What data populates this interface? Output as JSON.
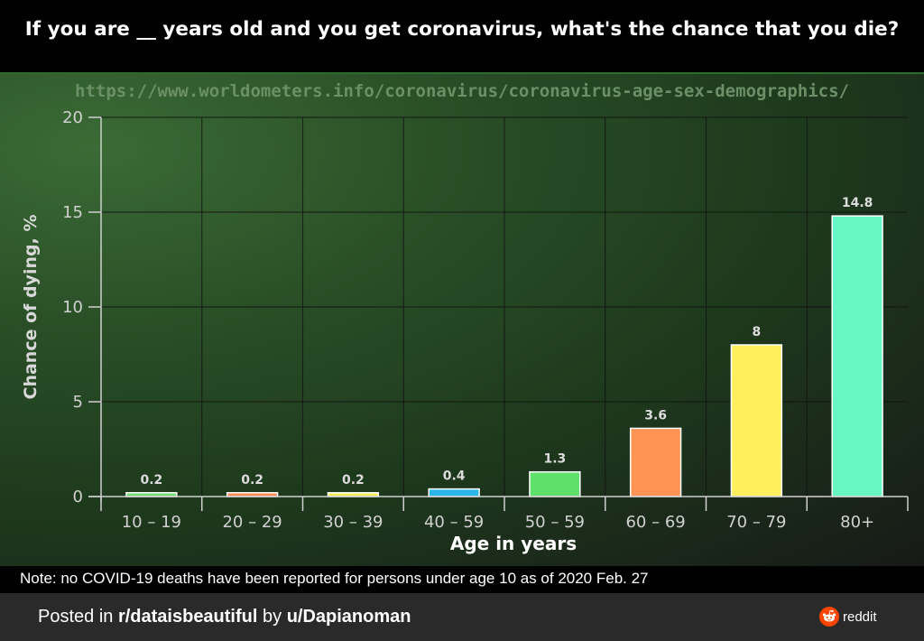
{
  "title": "If you are __ years old and you get coronavirus, what's the chance that you die?",
  "source_url": "https://www.worldometers.info/coronavirus/coronavirus-age-sex-demographics/",
  "note": "Note: no COVID-19 deaths have been reported for persons under age 10 as of 2020 Feb. 27",
  "footer": {
    "posted_prefix": "Posted in ",
    "subreddit": "r/dataisbeautiful",
    "by_text": " by ",
    "user": "u/Dapianoman",
    "brand": "reddit",
    "brand_icon": "reddit-icon",
    "brand_color": "#ff4500"
  },
  "chart_data": {
    "type": "bar",
    "xlabel": "Age in years",
    "ylabel": "Chance of dying, %",
    "ylim": [
      0,
      20
    ],
    "yticks": [
      0,
      5,
      10,
      15,
      20
    ],
    "grid": true,
    "categories": [
      "10 – 19",
      "20 – 29",
      "30 – 39",
      "40 – 59",
      "50 – 59",
      "60 – 69",
      "70 – 79",
      "80+"
    ],
    "values": [
      0.2,
      0.2,
      0.2,
      0.4,
      1.3,
      3.6,
      8,
      14.8
    ],
    "value_labels": [
      "0.2",
      "0.2",
      "0.2",
      "0.4",
      "1.3",
      "3.6",
      "8",
      "14.8"
    ],
    "colors": [
      "#6fdc6f",
      "#ff8a55",
      "#f5ee5a",
      "#29b6e8",
      "#5ee06a",
      "#ff9455",
      "#fdf05c",
      "#66f7c4"
    ]
  }
}
